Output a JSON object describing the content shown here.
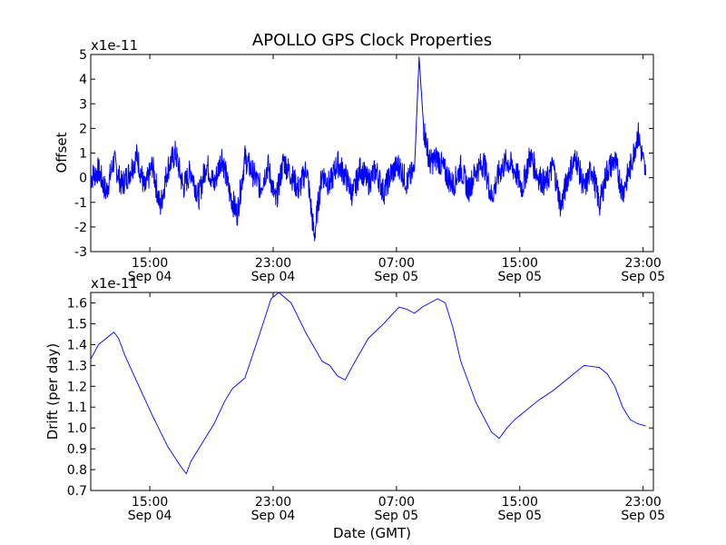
{
  "figure": {
    "title": "APOLLO GPS Clock Properties",
    "xlabel": "Date (GMT)"
  },
  "chart_data": [
    {
      "type": "line",
      "ylabel": "Offset",
      "multiplier_label": "x1e-11",
      "ylim": [
        -3,
        5
      ],
      "yticks": [
        -3,
        -2,
        -1,
        0,
        1,
        2,
        3,
        4,
        5
      ],
      "ytick_labels": [
        "-3",
        "-2",
        "-1",
        "0",
        "1",
        "2",
        "3",
        "4",
        "5"
      ],
      "xlim": [
        "Sep 04 11:10",
        "Sep 05 23:40"
      ],
      "xticks": [
        {
          "time": "15:00",
          "date": "Sep 04"
        },
        {
          "time": "23:00",
          "date": "Sep 04"
        },
        {
          "time": "07:00",
          "date": "Sep 05"
        },
        {
          "time": "15:00",
          "date": "Sep 05"
        },
        {
          "time": "23:00",
          "date": "Sep 05"
        }
      ],
      "line_color": "#0000ff",
      "series": [
        {
          "x_hours_from_start": [
            0.0,
            0.5,
            1.0,
            1.5,
            2.0,
            2.5,
            3.0,
            3.5,
            4.0,
            4.5,
            5.0,
            5.5,
            6.0,
            6.5,
            7.0,
            7.5,
            8.0,
            8.5,
            9.0,
            9.5,
            10.0,
            10.5,
            11.0,
            11.5,
            12.0,
            12.5,
            13.0,
            13.5,
            14.0,
            14.5,
            15.0,
            15.5,
            16.0,
            16.5,
            17.0,
            17.5,
            18.0,
            18.5,
            19.0,
            19.5,
            20.0,
            20.5,
            21.0,
            21.3,
            21.6,
            22.0,
            22.5,
            23.0,
            23.5,
            24.0,
            24.5,
            25.0,
            25.5,
            26.0,
            26.5,
            27.0,
            27.5,
            28.0,
            28.5,
            29.0,
            29.5,
            30.0,
            30.5,
            31.0,
            31.5,
            32.0,
            32.5,
            33.0,
            33.5,
            34.0,
            34.5,
            35.0,
            35.5,
            36.0
          ],
          "values": [
            0.0,
            0.3,
            -0.6,
            0.7,
            -0.3,
            0.2,
            0.9,
            -0.5,
            0.5,
            -1.2,
            0.4,
            1.0,
            -0.4,
            0.3,
            -0.8,
            0.6,
            -0.3,
            0.9,
            -0.6,
            -1.5,
            0.8,
            0.2,
            -0.4,
            0.5,
            -1.0,
            0.7,
            0.1,
            -0.5,
            0.4,
            -2.4,
            0.2,
            -0.3,
            0.6,
            0.1,
            -0.7,
            0.4,
            -0.2,
            0.3,
            -0.6,
            0.2,
            0.5,
            -0.2,
            0.3,
            4.9,
            2.0,
            0.6,
            0.8,
            0.2,
            -0.3,
            0.4,
            -0.5,
            0.3,
            0.6,
            -0.8,
            0.2,
            0.7,
            0.3,
            -0.4,
            0.9,
            0.1,
            -0.3,
            0.5,
            -1.2,
            0.2,
            0.8,
            -0.5,
            0.4,
            -1.1,
            0.3,
            0.7,
            -0.6,
            0.4,
            1.8,
            0.1
          ]
        }
      ]
    },
    {
      "type": "line",
      "ylabel": "Drift (per day)",
      "multiplier_label": "x1e-11",
      "ylim": [
        0.7,
        1.65
      ],
      "yticks": [
        0.7,
        0.8,
        0.9,
        1.0,
        1.1,
        1.2,
        1.3,
        1.4,
        1.5,
        1.6
      ],
      "ytick_labels": [
        "0.7",
        "0.8",
        "0.9",
        "1.0",
        "1.1",
        "1.2",
        "1.3",
        "1.4",
        "1.5",
        "1.6"
      ],
      "xlim": [
        "Sep 04 11:10",
        "Sep 05 23:40"
      ],
      "xticks": [
        {
          "time": "15:00",
          "date": "Sep 04"
        },
        {
          "time": "23:00",
          "date": "Sep 04"
        },
        {
          "time": "07:00",
          "date": "Sep 05"
        },
        {
          "time": "15:00",
          "date": "Sep 05"
        },
        {
          "time": "23:00",
          "date": "Sep 05"
        }
      ],
      "line_color": "#0000ff",
      "series": [
        {
          "x_hours_from_start": [
            0.0,
            0.5,
            1.0,
            1.5,
            1.8,
            2.2,
            3.0,
            4.0,
            5.0,
            5.8,
            6.2,
            6.5,
            7.0,
            8.0,
            8.7,
            9.2,
            10.0,
            11.0,
            11.7,
            12.2,
            13.0,
            14.0,
            14.7,
            15.0,
            15.5,
            16.0,
            16.5,
            17.0,
            18.0,
            19.0,
            19.5,
            20.0,
            20.5,
            21.0,
            21.5,
            22.0,
            22.5,
            23.0,
            23.5,
            24.0,
            25.0,
            26.0,
            26.5,
            27.0,
            27.5,
            28.0,
            29.0,
            30.0,
            31.0,
            32.0,
            33.0,
            33.5,
            34.0,
            34.5,
            35.0,
            35.5,
            36.0
          ],
          "values": [
            1.33,
            1.4,
            1.43,
            1.46,
            1.43,
            1.35,
            1.22,
            1.06,
            0.91,
            0.82,
            0.78,
            0.84,
            0.9,
            1.02,
            1.13,
            1.19,
            1.24,
            1.46,
            1.62,
            1.66,
            1.6,
            1.45,
            1.36,
            1.32,
            1.3,
            1.25,
            1.23,
            1.3,
            1.43,
            1.5,
            1.54,
            1.58,
            1.57,
            1.55,
            1.58,
            1.6,
            1.62,
            1.6,
            1.48,
            1.32,
            1.12,
            0.98,
            0.95,
            1.0,
            1.04,
            1.07,
            1.13,
            1.18,
            1.24,
            1.3,
            1.29,
            1.26,
            1.2,
            1.1,
            1.04,
            1.02,
            1.01
          ]
        }
      ]
    }
  ]
}
